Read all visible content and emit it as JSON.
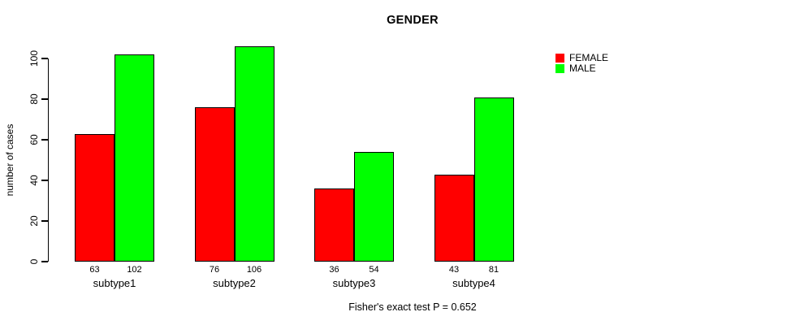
{
  "title": "GENDER",
  "footnote": "Fisher's exact test P = 0.652",
  "legend": {
    "items": [
      {
        "label": "FEMALE",
        "color": "#FF0000"
      },
      {
        "label": "MALE",
        "color": "#00FF00"
      }
    ]
  },
  "chart_data": {
    "type": "bar",
    "title": "GENDER",
    "xlabel": "",
    "ylabel": "number of cases",
    "categories": [
      "subtype1",
      "subtype2",
      "subtype3",
      "subtype4"
    ],
    "series": [
      {
        "name": "FEMALE",
        "color": "#FF0000",
        "values": [
          63,
          76,
          36,
          43
        ]
      },
      {
        "name": "MALE",
        "color": "#00FF00",
        "values": [
          102,
          106,
          54,
          81
        ]
      }
    ],
    "yticks": [
      0,
      20,
      40,
      60,
      80,
      100
    ],
    "ylim": [
      0,
      100
    ],
    "bar_value_labels_shown": true,
    "grid": false,
    "legend_position": "top-right",
    "annotation": "Fisher's exact test P = 0.652",
    "colors": {
      "background": "#FFFFFF",
      "axis": "#000000",
      "text": "#000000"
    }
  }
}
